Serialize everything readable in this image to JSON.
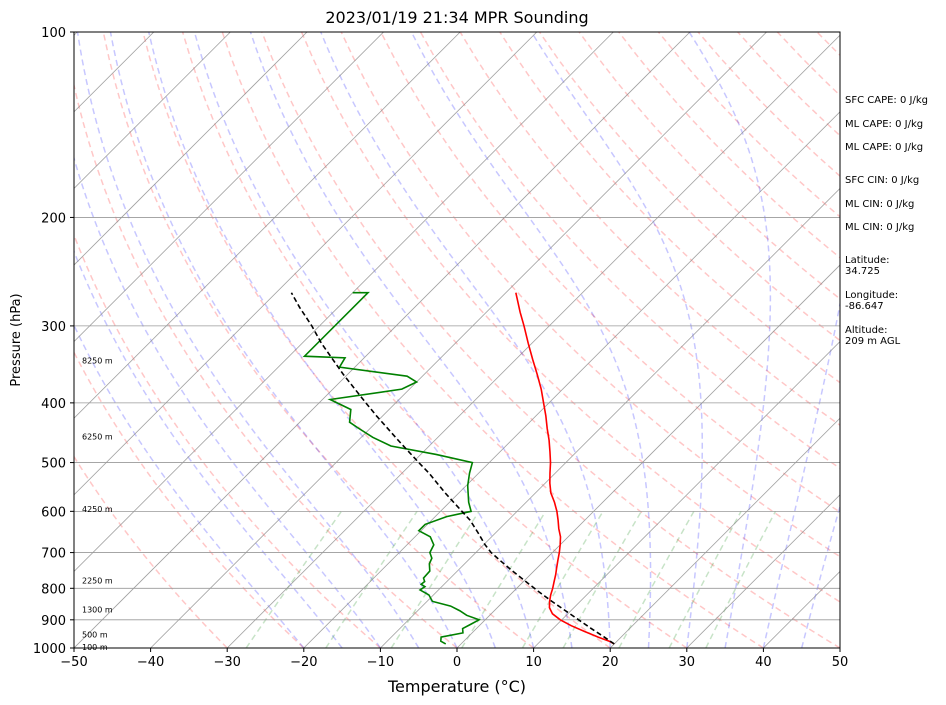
{
  "chart_data": {
    "type": "line",
    "title": "2023/01/19 21:34 MPR Sounding",
    "xlabel": "Temperature (°C)",
    "ylabel": "Pressure (hPa)",
    "xlim": [
      -50,
      50
    ],
    "ylim_pressure": [
      1000,
      100
    ],
    "y_scale": "log",
    "skew": true,
    "x_ticks": [
      -50,
      -40,
      -30,
      -20,
      -10,
      0,
      10,
      20,
      30,
      40,
      50
    ],
    "x_tick_labels": [
      "−50",
      "−40",
      "−30",
      "−20",
      "−10",
      "0",
      "10",
      "20",
      "30",
      "40",
      "50"
    ],
    "y_ticks": [
      1000,
      900,
      800,
      700,
      600,
      500,
      400,
      300,
      200,
      100
    ],
    "y_tick_labels": [
      "1000",
      "900",
      "800",
      "700",
      "600",
      "500",
      "400",
      "300",
      "200",
      "100"
    ],
    "grid": true,
    "height_labels": [
      {
        "pressure": 1000,
        "text": "100 m"
      },
      {
        "pressure": 955,
        "text": "500 m"
      },
      {
        "pressure": 870,
        "text": "1300 m"
      },
      {
        "pressure": 780,
        "text": "2250 m"
      },
      {
        "pressure": 597,
        "text": "4250 m"
      },
      {
        "pressure": 455,
        "text": "6250 m"
      },
      {
        "pressure": 343,
        "text": "8250 m"
      }
    ],
    "series": [
      {
        "color": "#ff0000",
        "style": "solid",
        "points": [
          [
            985,
            20.0
          ],
          [
            975,
            19.0
          ],
          [
            960,
            17.0
          ],
          [
            940,
            14.5
          ],
          [
            920,
            12.0
          ],
          [
            900,
            9.8
          ],
          [
            880,
            8.0
          ],
          [
            860,
            6.8
          ],
          [
            840,
            6.0
          ],
          [
            820,
            5.3
          ],
          [
            800,
            4.7
          ],
          [
            780,
            4.0
          ],
          [
            760,
            3.3
          ],
          [
            740,
            2.5
          ],
          [
            720,
            1.7
          ],
          [
            700,
            0.9
          ],
          [
            680,
            0.0
          ],
          [
            660,
            -1.0
          ],
          [
            640,
            -2.3
          ],
          [
            620,
            -3.5
          ],
          [
            600,
            -4.8
          ],
          [
            580,
            -6.3
          ],
          [
            560,
            -8.0
          ],
          [
            540,
            -9.4
          ],
          [
            520,
            -10.7
          ],
          [
            500,
            -12.0
          ],
          [
            480,
            -13.5
          ],
          [
            460,
            -15.1
          ],
          [
            440,
            -16.9
          ],
          [
            420,
            -18.7
          ],
          [
            400,
            -20.7
          ],
          [
            380,
            -22.8
          ],
          [
            360,
            -25.2
          ],
          [
            340,
            -27.8
          ],
          [
            320,
            -30.5
          ],
          [
            300,
            -33.3
          ],
          [
            285,
            -35.6
          ],
          [
            265,
            -38.7
          ]
        ]
      },
      {
        "color": "#008000",
        "style": "solid",
        "points": [
          [
            985,
            -2.0
          ],
          [
            975,
            -3.0
          ],
          [
            960,
            -3.5
          ],
          [
            945,
            -1.2
          ],
          [
            930,
            -1.8
          ],
          [
            915,
            -1.3
          ],
          [
            900,
            -0.8
          ],
          [
            885,
            -3.0
          ],
          [
            870,
            -4.5
          ],
          [
            855,
            -6.3
          ],
          [
            840,
            -9.3
          ],
          [
            820,
            -10.6
          ],
          [
            805,
            -12.4
          ],
          [
            795,
            -12.2
          ],
          [
            788,
            -13.0
          ],
          [
            780,
            -12.9
          ],
          [
            770,
            -13.5
          ],
          [
            750,
            -13.6
          ],
          [
            730,
            -14.6
          ],
          [
            715,
            -15.0
          ],
          [
            700,
            -16.0
          ],
          [
            680,
            -16.5
          ],
          [
            660,
            -18.0
          ],
          [
            645,
            -20.3
          ],
          [
            630,
            -20.3
          ],
          [
            612,
            -18.5
          ],
          [
            600,
            -16.0
          ],
          [
            580,
            -17.5
          ],
          [
            560,
            -18.8
          ],
          [
            545,
            -19.8
          ],
          [
            520,
            -21.2
          ],
          [
            500,
            -22.2
          ],
          [
            485,
            -28.0
          ],
          [
            470,
            -35.0
          ],
          [
            455,
            -38.5
          ],
          [
            440,
            -41.5
          ],
          [
            430,
            -43.5
          ],
          [
            410,
            -45.0
          ],
          [
            395,
            -49.0
          ],
          [
            380,
            -41.0
          ],
          [
            370,
            -40.0
          ],
          [
            362,
            -42.0
          ],
          [
            350,
            -52.0
          ],
          [
            338,
            -52.5
          ],
          [
            336,
            -58.0
          ],
          [
            265,
            -58.0
          ],
          [
            265,
            -60.0
          ]
        ]
      },
      {
        "color": "#000000",
        "style": "dashed",
        "points": [
          [
            985,
            20.0
          ],
          [
            960,
            17.8
          ],
          [
            930,
            15.0
          ],
          [
            900,
            12.2
          ],
          [
            870,
            9.3
          ],
          [
            840,
            6.3
          ],
          [
            810,
            3.3
          ],
          [
            780,
            0.3
          ],
          [
            750,
            -2.8
          ],
          [
            720,
            -5.9
          ],
          [
            700,
            -8.0
          ],
          [
            680,
            -9.8
          ],
          [
            650,
            -12.3
          ],
          [
            620,
            -15.0
          ],
          [
            600,
            -17.2
          ],
          [
            560,
            -21.8
          ],
          [
            520,
            -26.5
          ],
          [
            500,
            -29.2
          ],
          [
            460,
            -34.8
          ],
          [
            420,
            -40.8
          ],
          [
            400,
            -43.9
          ],
          [
            360,
            -50.5
          ],
          [
            320,
            -57.5
          ],
          [
            300,
            -61.0
          ],
          [
            280,
            -65.0
          ],
          [
            265,
            -68.0
          ]
        ]
      }
    ]
  },
  "sidebar": {
    "sfc_cape": "SFC CAPE: 0 J/kg",
    "ml_cape_1": "ML CAPE: 0 J/kg",
    "ml_cape_2": "ML CAPE: 0 J/kg",
    "sfc_cin": "SFC CIN: 0 J/kg",
    "ml_cin_1": "ML CIN: 0 J/kg",
    "ml_cin_2": "ML CIN: 0 J/kg",
    "latitude": "Latitude:\n34.725",
    "longitude": "Longitude:\n-86.647",
    "altitude": "Altitude:\n209 m AGL"
  }
}
